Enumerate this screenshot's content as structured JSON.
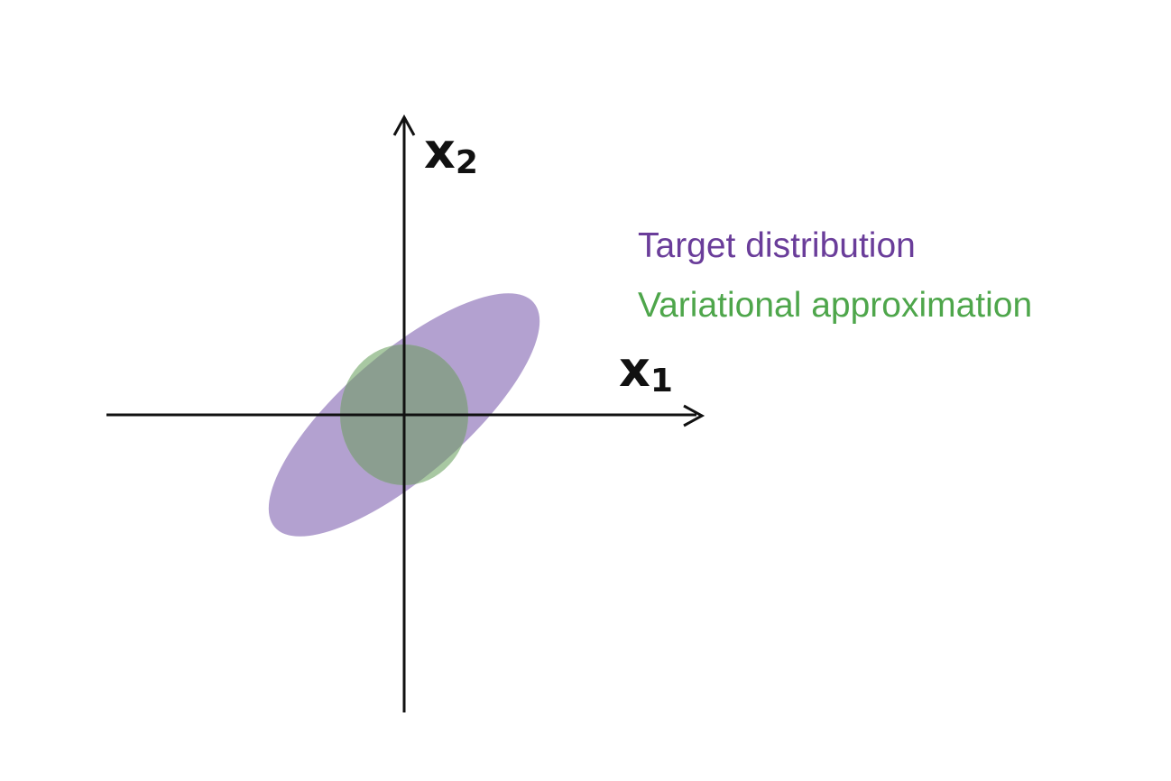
{
  "axes": {
    "x_label": "x",
    "x_subscript": "1",
    "y_label": "x",
    "y_subscript": "2"
  },
  "legend": {
    "items": [
      {
        "label": "Target distribution",
        "color": "#6a3d9a"
      },
      {
        "label": "Variational approximation",
        "color": "#4ea64b"
      }
    ]
  },
  "shapes": {
    "target_fill": "#b3a1d0",
    "approx_fill": "#a8c8a2",
    "overlap_fill": "#8b9e90"
  }
}
